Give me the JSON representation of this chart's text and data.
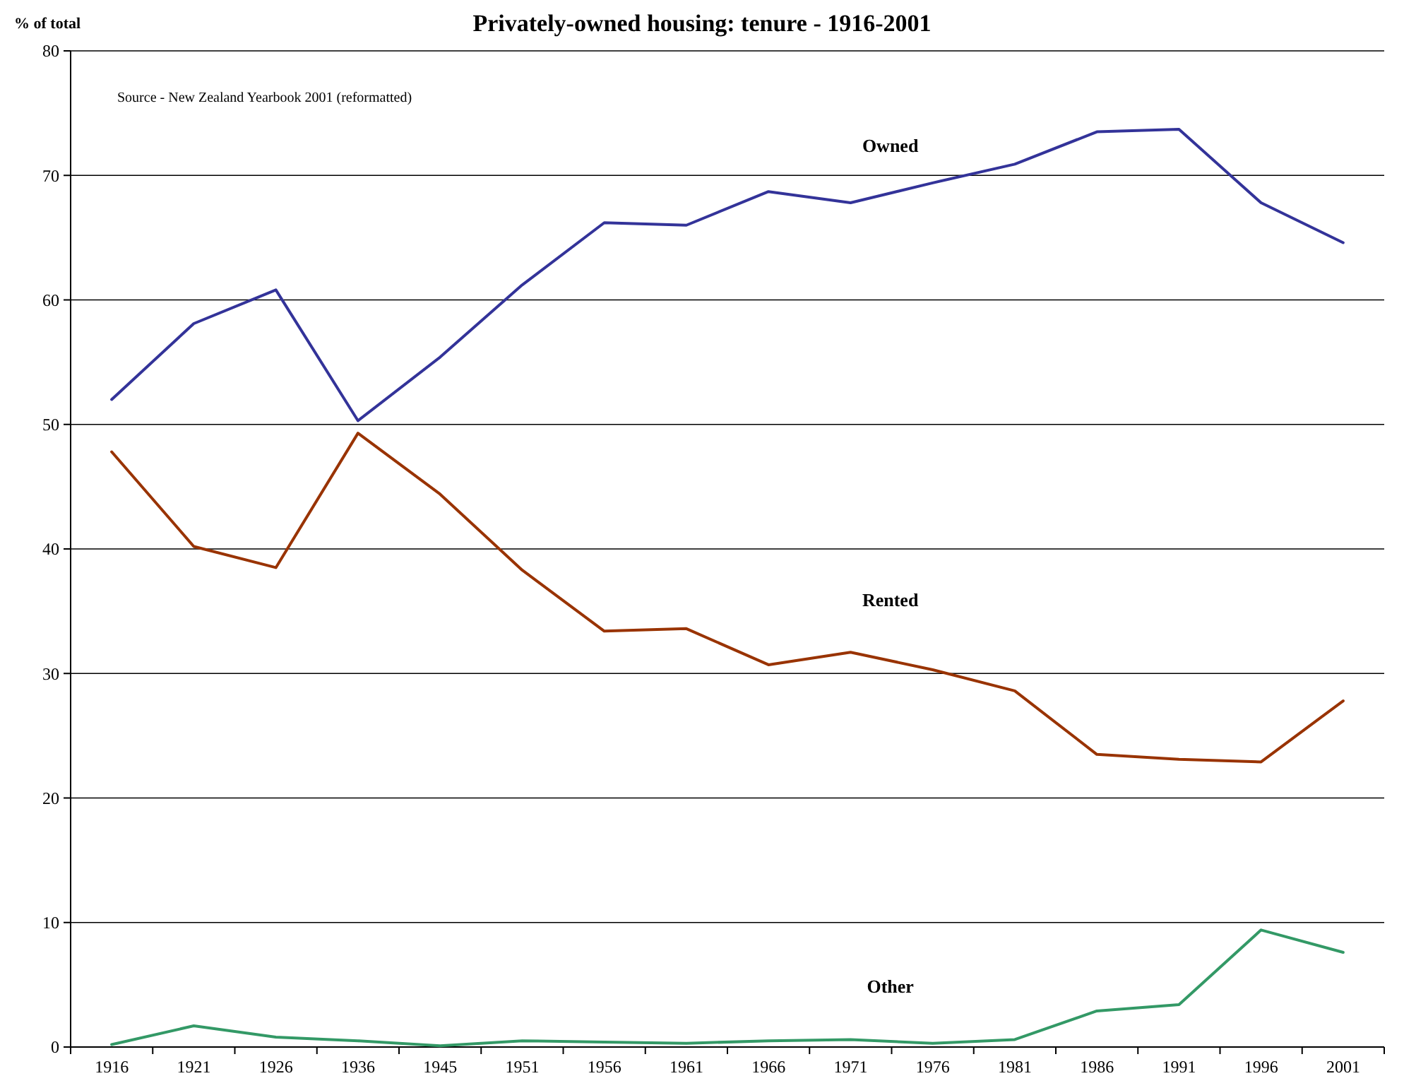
{
  "chart_data": {
    "type": "line",
    "title": "Privately-owned housing:  tenure - 1916-2001",
    "ylabel": "% of total",
    "annotations": [
      "Source - New Zealand Yearbook 2001 (reformatted)"
    ],
    "categories": [
      "1916",
      "1921",
      "1926",
      "1936",
      "1945",
      "1951",
      "1956",
      "1961",
      "1966",
      "1971",
      "1976",
      "1981",
      "1986",
      "1991",
      "1996",
      "2001"
    ],
    "series": [
      {
        "name": "Owned",
        "color": "#333399",
        "values": [
          52.0,
          58.1,
          60.8,
          50.3,
          55.4,
          61.2,
          66.2,
          66.0,
          68.7,
          67.8,
          69.4,
          70.9,
          73.5,
          73.7,
          67.8,
          64.6
        ]
      },
      {
        "name": "Rented",
        "color": "#993300",
        "values": [
          47.8,
          40.2,
          38.5,
          49.3,
          44.4,
          38.3,
          33.4,
          33.6,
          30.7,
          31.7,
          30.3,
          28.6,
          23.5,
          23.1,
          22.9,
          27.8
        ]
      },
      {
        "name": "Other",
        "color": "#339966",
        "values": [
          0.2,
          1.7,
          0.8,
          0.5,
          0.1,
          0.5,
          0.4,
          0.3,
          0.5,
          0.6,
          0.3,
          0.6,
          2.9,
          3.4,
          9.4,
          7.6
        ]
      }
    ],
    "ylim": [
      0,
      80
    ],
    "yticks": [
      0,
      10,
      20,
      30,
      40,
      50,
      60,
      70,
      80
    ],
    "grid": "y",
    "marker": "none",
    "line_style": "solid"
  }
}
